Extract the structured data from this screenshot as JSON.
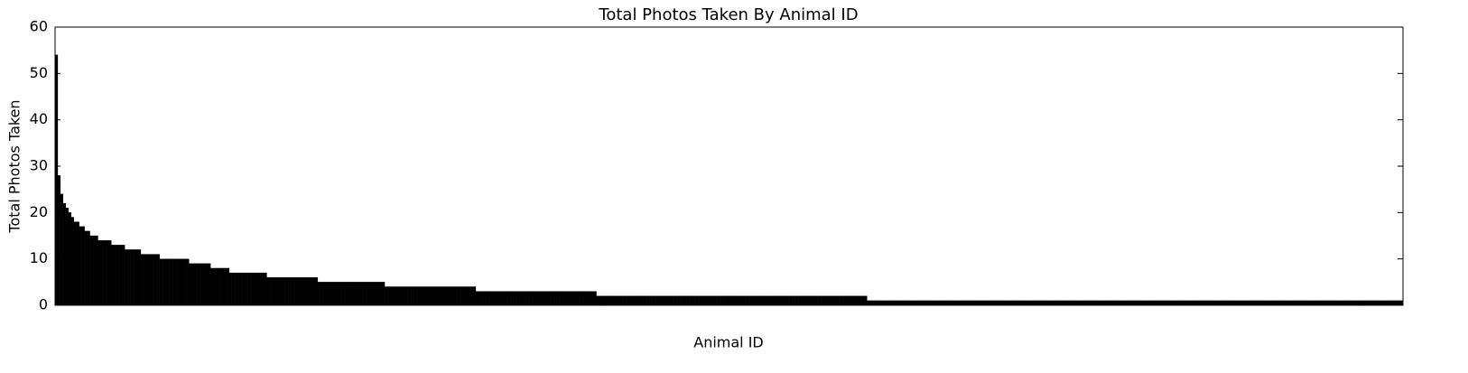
{
  "chart_data": {
    "type": "bar",
    "title": "Total Photos Taken By Animal ID",
    "xlabel": "Animal ID",
    "ylabel": "Total Photos Taken",
    "color": "#000000",
    "categories": [
      null,
      null,
      null,
      null,
      null,
      null,
      null,
      null,
      null,
      null,
      null,
      null,
      null,
      null,
      null,
      null,
      null,
      null,
      null,
      null,
      null,
      null,
      null,
      null,
      null,
      null,
      null,
      null,
      null,
      null,
      null,
      null,
      null,
      null,
      null,
      null,
      null,
      null,
      null,
      null,
      null,
      null,
      null,
      null,
      null,
      null,
      null,
      null,
      null,
      null,
      null,
      null,
      null,
      null,
      null,
      null,
      null,
      null,
      null,
      null,
      null,
      null,
      null,
      null,
      null,
      null,
      null,
      null,
      null,
      null,
      null,
      null,
      null,
      null,
      null,
      null,
      null,
      null,
      null,
      null,
      null,
      null,
      null,
      null,
      null,
      null,
      null,
      null,
      null,
      null,
      null,
      null,
      null,
      null,
      null,
      null,
      null,
      null,
      null,
      null,
      null,
      null,
      null,
      null,
      null,
      null,
      null,
      null,
      null,
      null,
      null,
      null,
      null,
      null,
      null,
      null,
      null,
      null,
      null,
      null,
      null,
      null,
      null,
      null,
      null,
      null,
      null,
      null,
      null,
      null,
      null,
      null,
      null,
      null,
      null,
      null,
      null,
      null,
      null,
      null,
      null,
      null,
      null,
      null,
      null,
      null,
      null,
      null,
      null,
      null,
      null,
      null,
      null,
      null,
      null,
      null,
      null,
      null,
      null,
      null,
      null,
      null,
      null,
      null,
      null,
      null,
      null,
      null,
      null,
      null,
      null,
      null,
      null,
      null,
      null,
      null,
      null,
      null,
      null,
      null,
      null,
      null,
      null,
      null,
      null,
      null,
      null,
      null,
      null,
      null,
      null,
      null,
      null,
      null,
      null,
      null,
      null,
      null,
      null,
      null,
      null,
      null,
      null,
      null,
      null,
      null,
      null,
      null,
      null,
      null,
      null,
      null,
      null,
      null,
      null,
      null,
      null,
      null,
      null,
      null,
      null,
      null,
      null,
      null,
      null,
      null,
      null,
      null,
      null,
      null,
      null,
      null,
      null,
      null,
      null,
      null,
      null,
      null,
      null,
      null,
      null,
      null,
      null,
      null,
      null,
      null,
      null,
      null,
      null,
      null,
      null,
      null,
      null,
      null,
      null,
      null,
      null,
      null,
      null,
      null,
      null,
      null,
      null,
      null,
      null,
      null,
      null,
      null,
      null,
      null,
      null,
      null,
      null,
      null,
      null,
      null,
      null,
      null,
      null,
      null,
      null,
      null,
      null,
      null,
      null,
      null,
      null,
      null,
      null,
      null,
      null,
      null,
      null,
      null,
      null,
      null,
      null,
      null,
      null,
      null,
      null,
      null,
      null,
      null,
      null,
      null,
      null,
      null,
      null,
      null,
      null,
      null,
      null,
      null,
      null,
      null,
      null,
      null,
      null,
      null,
      null,
      null,
      null,
      null,
      null,
      null,
      null,
      null,
      null,
      null,
      null,
      null,
      null,
      null,
      null,
      null,
      null,
      null,
      null,
      null,
      null,
      null,
      null,
      null,
      null,
      null,
      null,
      null,
      null,
      null,
      null,
      null,
      null,
      null,
      null,
      null,
      null,
      null,
      null,
      null,
      null,
      null,
      null,
      null,
      null,
      null,
      null,
      null,
      null,
      null,
      null,
      null,
      null,
      null,
      null,
      null,
      null,
      null,
      null,
      null,
      null,
      null,
      null,
      null,
      null,
      null,
      null,
      null,
      null,
      null,
      null,
      null,
      null,
      null,
      null,
      null,
      null,
      null,
      null,
      null,
      null,
      null,
      null,
      null,
      null,
      null,
      null,
      null,
      null,
      null,
      null,
      null,
      null,
      null,
      null,
      null,
      null,
      null,
      null,
      null,
      null,
      null,
      null,
      null,
      null,
      null,
      null,
      null,
      null,
      null,
      null,
      null,
      null,
      null,
      null,
      null,
      null,
      null,
      null,
      null,
      null,
      null,
      null,
      null,
      null,
      null,
      null,
      null,
      null,
      null,
      null,
      null,
      null,
      null,
      null,
      null,
      null,
      null,
      null,
      null,
      null,
      null,
      null,
      null,
      null,
      null,
      null,
      null,
      null,
      null,
      null,
      null,
      null,
      null,
      null,
      null,
      null,
      null,
      null,
      null,
      null,
      null,
      null,
      null,
      null,
      null,
      null,
      null,
      null,
      null,
      null,
      null,
      null,
      null,
      null,
      null,
      null,
      null,
      null,
      null,
      null,
      null,
      null
    ],
    "values": [
      54,
      28,
      24,
      22,
      21,
      20,
      19,
      18,
      18,
      17,
      17,
      16,
      16,
      15,
      15,
      15,
      14,
      14,
      14,
      14,
      14,
      13,
      13,
      13,
      13,
      13,
      12,
      12,
      12,
      12,
      12,
      12,
      11,
      11,
      11,
      11,
      11,
      11,
      11,
      10,
      10,
      10,
      10,
      10,
      10,
      10,
      10,
      10,
      10,
      10,
      9,
      9,
      9,
      9,
      9,
      9,
      9,
      9,
      8,
      8,
      8,
      8,
      8,
      8,
      8,
      7,
      7,
      7,
      7,
      7,
      7,
      7,
      7,
      7,
      7,
      7,
      7,
      7,
      7,
      6,
      6,
      6,
      6,
      6,
      6,
      6,
      6,
      6,
      6,
      6,
      6,
      6,
      6,
      6,
      6,
      6,
      6,
      6,
      5,
      5,
      5,
      5,
      5,
      5,
      5,
      5,
      5,
      5,
      5,
      5,
      5,
      5,
      5,
      5,
      5,
      5,
      5,
      5,
      5,
      5,
      5,
      5,
      5,
      4,
      4,
      4,
      4,
      4,
      4,
      4,
      4,
      4,
      4,
      4,
      4,
      4,
      4,
      4,
      4,
      4,
      4,
      4,
      4,
      4,
      4,
      4,
      4,
      4,
      4,
      4,
      4,
      4,
      4,
      4,
      4,
      4,
      4,
      3,
      3,
      3,
      3,
      3,
      3,
      3,
      3,
      3,
      3,
      3,
      3,
      3,
      3,
      3,
      3,
      3,
      3,
      3,
      3,
      3,
      3,
      3,
      3,
      3,
      3,
      3,
      3,
      3,
      3,
      3,
      3,
      3,
      3,
      3,
      3,
      3,
      3,
      3,
      3,
      3,
      3,
      3,
      3,
      3,
      2,
      2,
      2,
      2,
      2,
      2,
      2,
      2,
      2,
      2,
      2,
      2,
      2,
      2,
      2,
      2,
      2,
      2,
      2,
      2,
      2,
      2,
      2,
      2,
      2,
      2,
      2,
      2,
      2,
      2,
      2,
      2,
      2,
      2,
      2,
      2,
      2,
      2,
      2,
      2,
      2,
      2,
      2,
      2,
      2,
      2,
      2,
      2,
      2,
      2,
      2,
      2,
      2,
      2,
      2,
      2,
      2,
      2,
      2,
      2,
      2,
      2,
      2,
      2,
      2,
      2,
      2,
      2,
      2,
      2,
      2,
      2,
      2,
      2,
      2,
      2,
      2,
      2,
      2,
      2,
      2,
      2,
      2,
      2,
      2,
      2,
      2,
      2,
      2,
      2,
      2,
      2,
      2,
      2,
      2,
      2,
      2,
      2,
      2,
      2,
      2,
      1,
      1,
      1,
      1,
      1,
      1,
      1,
      1,
      1,
      1,
      1,
      1,
      1,
      1,
      1,
      1,
      1,
      1,
      1,
      1,
      1,
      1,
      1,
      1,
      1,
      1,
      1,
      1,
      1,
      1,
      1,
      1,
      1,
      1,
      1,
      1,
      1,
      1,
      1,
      1,
      1,
      1,
      1,
      1,
      1,
      1,
      1,
      1,
      1,
      1,
      1,
      1,
      1,
      1,
      1,
      1,
      1,
      1,
      1,
      1,
      1,
      1,
      1,
      1,
      1,
      1,
      1,
      1,
      1,
      1,
      1,
      1,
      1,
      1,
      1,
      1,
      1,
      1,
      1,
      1,
      1,
      1,
      1,
      1,
      1,
      1,
      1,
      1,
      1,
      1,
      1,
      1,
      1,
      1,
      1,
      1,
      1,
      1,
      1,
      1,
      1,
      1,
      1,
      1,
      1,
      1,
      1,
      1,
      1,
      1,
      1,
      1,
      1,
      1,
      1,
      1,
      1,
      1,
      1,
      1,
      1,
      1,
      1,
      1,
      1,
      1,
      1,
      1,
      1,
      1,
      1,
      1,
      1,
      1,
      1,
      1,
      1,
      1,
      1,
      1,
      1,
      1,
      1,
      1,
      1,
      1,
      1,
      1,
      1,
      1,
      1,
      1,
      1,
      1,
      1,
      1,
      1,
      1,
      1,
      1,
      1,
      1,
      1,
      1,
      1,
      1,
      1,
      1,
      1,
      1,
      1,
      1,
      1,
      1,
      1,
      1,
      1,
      1,
      1,
      1,
      1,
      1,
      1,
      1,
      1,
      1,
      1,
      1,
      1,
      1,
      1,
      1,
      1,
      1,
      1,
      1,
      1,
      1,
      1,
      1
    ],
    "ylim": [
      0,
      60
    ],
    "yticks": [
      0,
      10,
      20,
      30,
      40,
      50,
      60
    ],
    "grid": false
  }
}
